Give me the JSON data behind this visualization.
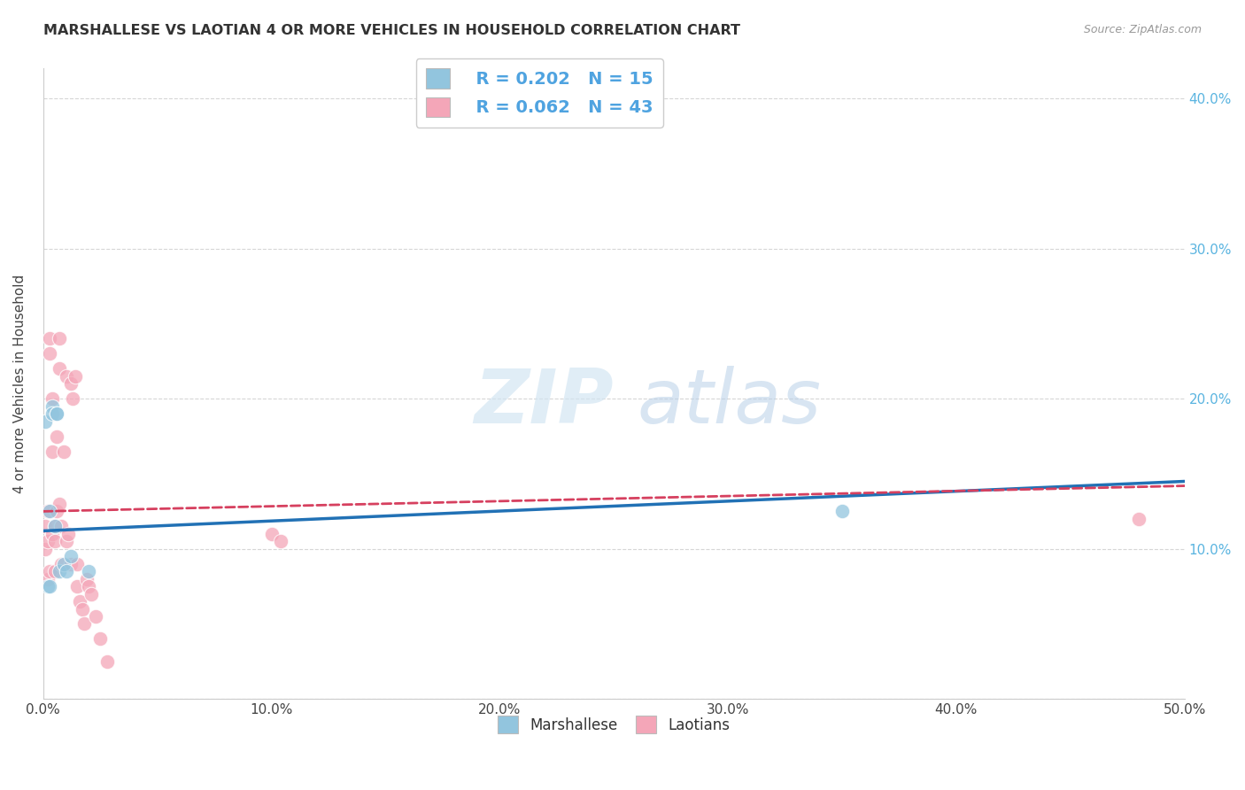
{
  "title": "MARSHALLESE VS LAOTIAN 4 OR MORE VEHICLES IN HOUSEHOLD CORRELATION CHART",
  "source": "Source: ZipAtlas.com",
  "ylabel": "4 or more Vehicles in Household",
  "x_ticks": [
    0.0,
    0.1,
    0.2,
    0.3,
    0.4,
    0.5
  ],
  "x_tick_labels": [
    "0.0%",
    "10.0%",
    "20.0%",
    "30.0%",
    "40.0%",
    "50.0%"
  ],
  "y_ticks_right": [
    0.1,
    0.2,
    0.3,
    0.4
  ],
  "y_tick_labels_right": [
    "10.0%",
    "20.0%",
    "30.0%",
    "40.0%"
  ],
  "legend_R_blue": "R = 0.202",
  "legend_N_blue": "N = 15",
  "legend_R_pink": "R = 0.062",
  "legend_N_pink": "N = 43",
  "legend_labels": [
    "Marshallese",
    "Laotians"
  ],
  "blue_color": "#92c5de",
  "pink_color": "#f4a6b8",
  "blue_line_color": "#2171b5",
  "pink_line_color": "#d6405f",
  "watermark_zip": "ZIP",
  "watermark_atlas": "atlas",
  "marshallese_x": [
    0.001,
    0.002,
    0.003,
    0.003,
    0.004,
    0.004,
    0.005,
    0.006,
    0.006,
    0.007,
    0.009,
    0.01,
    0.012,
    0.02,
    0.35
  ],
  "marshallese_y": [
    0.185,
    0.075,
    0.125,
    0.075,
    0.195,
    0.19,
    0.115,
    0.19,
    0.19,
    0.085,
    0.09,
    0.085,
    0.095,
    0.085,
    0.125
  ],
  "laotian_x": [
    0.001,
    0.001,
    0.002,
    0.002,
    0.002,
    0.003,
    0.003,
    0.003,
    0.004,
    0.004,
    0.004,
    0.005,
    0.005,
    0.005,
    0.006,
    0.006,
    0.007,
    0.007,
    0.007,
    0.008,
    0.008,
    0.009,
    0.01,
    0.01,
    0.011,
    0.012,
    0.012,
    0.013,
    0.014,
    0.015,
    0.015,
    0.016,
    0.017,
    0.018,
    0.019,
    0.02,
    0.021,
    0.023,
    0.025,
    0.028,
    0.1,
    0.104,
    0.48
  ],
  "laotian_y": [
    0.115,
    0.1,
    0.125,
    0.105,
    0.08,
    0.24,
    0.23,
    0.085,
    0.2,
    0.165,
    0.11,
    0.115,
    0.105,
    0.085,
    0.175,
    0.125,
    0.24,
    0.22,
    0.13,
    0.115,
    0.09,
    0.165,
    0.215,
    0.105,
    0.11,
    0.21,
    0.09,
    0.2,
    0.215,
    0.09,
    0.075,
    0.065,
    0.06,
    0.05,
    0.08,
    0.075,
    0.07,
    0.055,
    0.04,
    0.025,
    0.11,
    0.105,
    0.12
  ],
  "xlim": [
    0.0,
    0.5
  ],
  "ylim": [
    0.0,
    0.42
  ],
  "trend_x_start": 0.0,
  "trend_x_end": 0.5,
  "blue_trend_y0": 0.112,
  "blue_trend_y1": 0.145,
  "pink_trend_y0": 0.125,
  "pink_trend_y1": 0.142
}
